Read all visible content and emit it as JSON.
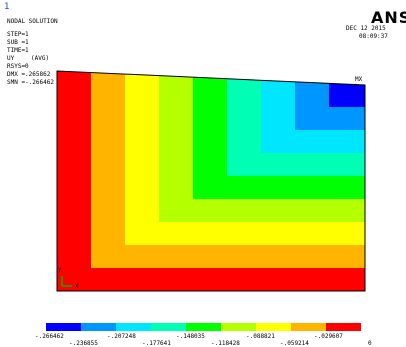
{
  "window_number": "1",
  "logo": "ANSY",
  "header": {
    "lines": [
      "NODAL SOLUTION",
      "STEP=1",
      "SUB =1",
      "TIME=1",
      "UY",
      "RSYS=0",
      "DMX =.265862",
      "SMN =-.266462"
    ],
    "avg_label": "(AVG)"
  },
  "timestamp": {
    "date": "DEC 12 2015",
    "time": "08:09:37"
  },
  "model": {
    "mx_label": "MX",
    "triad_labels": {
      "y": "Y",
      "x": "X"
    }
  },
  "colors": {
    "bands": [
      "#0000ff",
      "#0096ff",
      "#00e6ff",
      "#00ffb4",
      "#00ff00",
      "#b4ff00",
      "#ffff00",
      "#ffb400",
      "#ff0000"
    ],
    "mesh_edge": "#000000",
    "triad_z": "#00b400"
  },
  "legend": {
    "top_labels": [
      "-.266462",
      "-.207248",
      "-.148035",
      "-.088821",
      "-.029607"
    ],
    "bottom_labels": [
      "-.236855",
      "-.177641",
      "-.118428",
      "-.059214",
      "0"
    ]
  }
}
